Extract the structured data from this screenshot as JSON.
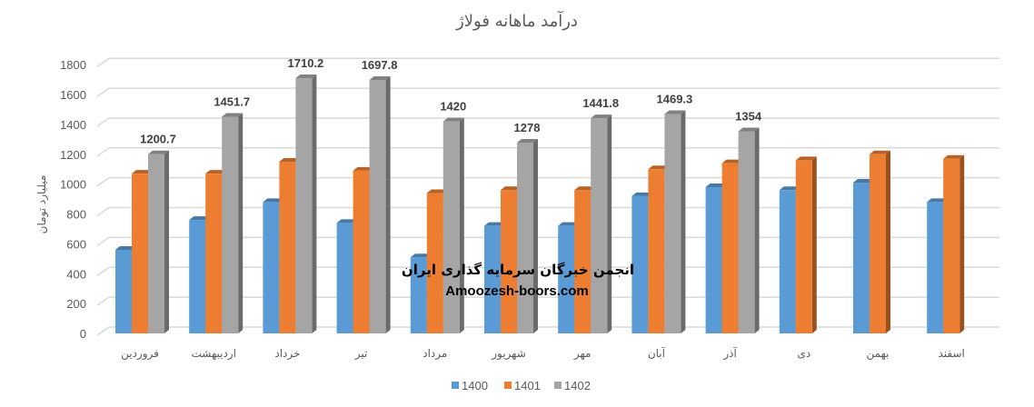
{
  "chart_data": {
    "type": "bar",
    "title": "درآمد ماهانه فولاژ",
    "ylabel": "میلیارد تومان",
    "xlabel": "",
    "ylim": [
      0,
      1800
    ],
    "yticks": [
      0,
      200,
      400,
      600,
      800,
      1000,
      1200,
      1400,
      1600,
      1800
    ],
    "grid": true,
    "legend_position": "bottom",
    "style": "3d-clustered-column",
    "categories": [
      "فروردین",
      "اردیبهشت",
      "خرداد",
      "تیر",
      "مرداد",
      "شهریور",
      "مهر",
      "آبان",
      "آذر",
      "دی",
      "بهمن",
      "اسفند"
    ],
    "series": [
      {
        "name": "1400",
        "color": "#5B9BD5",
        "values": [
          560,
          760,
          880,
          740,
          510,
          720,
          720,
          920,
          980,
          960,
          1010,
          880
        ]
      },
      {
        "name": "1401",
        "color": "#ED7D31",
        "values": [
          1070,
          1070,
          1150,
          1090,
          940,
          960,
          960,
          1100,
          1140,
          1160,
          1200,
          1170
        ]
      },
      {
        "name": "1402",
        "color": "#A5A5A5",
        "values": [
          1200.7,
          1451.7,
          1710.2,
          1697.8,
          1420,
          1278,
          1441.8,
          1469.3,
          1354,
          null,
          null,
          null
        ]
      }
    ],
    "data_labels": {
      "1402": [
        "1200.7",
        "1451.7",
        "1710.2",
        "1697.8",
        "1420",
        "1278",
        "1441.8",
        "1469.3",
        "1354"
      ]
    }
  },
  "watermark": {
    "line1": "انجمن خبرگان سرمایه گذاری ایران",
    "line2": "Amoozesh-boors.com"
  }
}
